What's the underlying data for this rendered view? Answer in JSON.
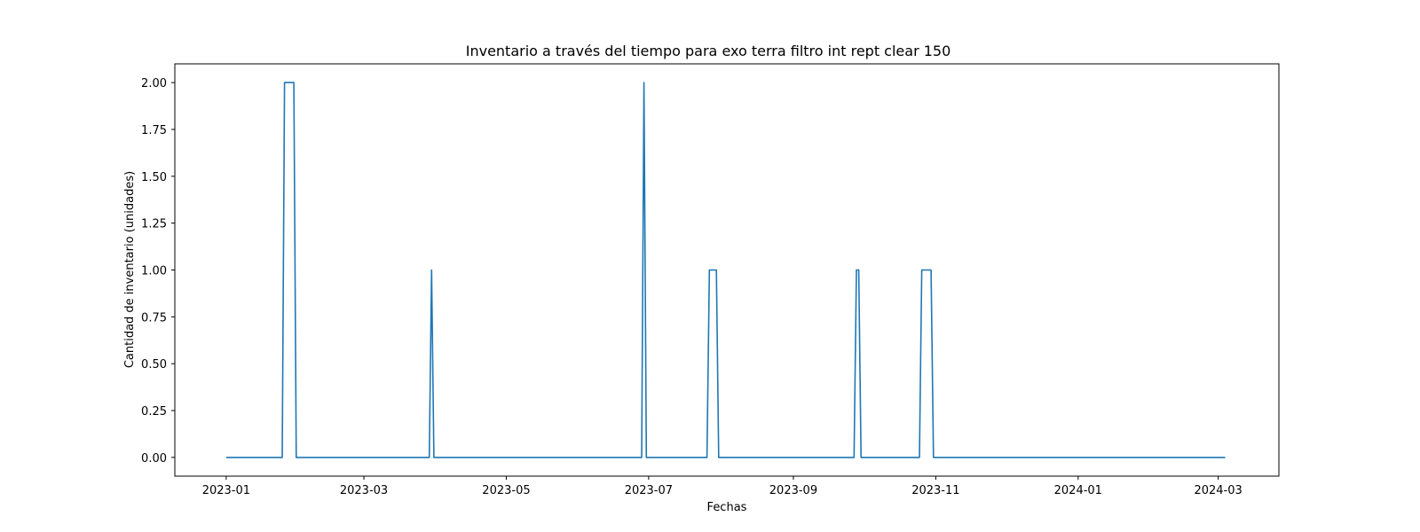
{
  "chart_data": {
    "type": "line",
    "title": "Inventario a través del tiempo para exo terra filtro int rept clear 150",
    "xlabel": "Fechas",
    "ylabel": "Cantidad de inventario (unidades)",
    "xlim": [
      "2022-12-10",
      "2024-03-27"
    ],
    "ylim": [
      -0.1,
      2.1
    ],
    "x_ticks": [
      "2023-01",
      "2023-03",
      "2023-05",
      "2023-07",
      "2023-09",
      "2023-11",
      "2024-01",
      "2024-03"
    ],
    "y_ticks": [
      "0.00",
      "0.25",
      "0.50",
      "0.75",
      "1.00",
      "1.25",
      "1.50",
      "1.75",
      "2.00"
    ],
    "grid": false,
    "series": [
      {
        "color": "#1f77b4",
        "x": [
          "2023-01-01",
          "2023-01-25",
          "2023-01-26",
          "2023-01-30",
          "2023-01-31",
          "2023-03-29",
          "2023-03-30",
          "2023-03-31",
          "2023-06-28",
          "2023-06-29",
          "2023-06-30",
          "2023-07-26",
          "2023-07-27",
          "2023-07-30",
          "2023-07-31",
          "2023-09-27",
          "2023-09-28",
          "2023-09-29",
          "2023-09-30",
          "2023-10-25",
          "2023-10-26",
          "2023-10-30",
          "2023-10-31",
          "2024-03-04"
        ],
        "y": [
          0,
          0,
          2,
          2,
          0,
          0,
          1,
          0,
          0,
          2,
          0,
          0,
          1,
          1,
          0,
          0,
          1,
          1,
          0,
          0,
          1,
          1,
          0,
          0
        ]
      }
    ]
  }
}
